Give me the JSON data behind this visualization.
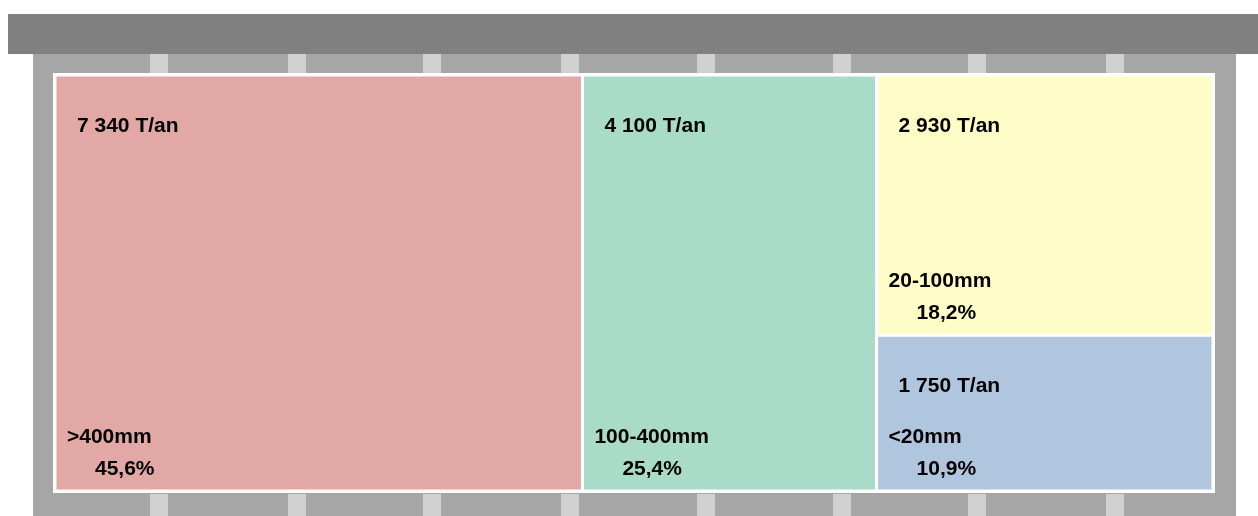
{
  "chart_data": {
    "type": "other",
    "categories": [
      ">400mm",
      "100-400mm",
      "20-100mm",
      "<20mm"
    ],
    "series": [
      {
        "colors": [
          "#e2a8a5",
          "#a9dcc8",
          "#fefdc8",
          "#b0c6de"
        ],
        "values": [
          7340,
          4100,
          2930,
          1750
        ],
        "value_labels": [
          "7 340 T/an",
          "4 100 T/an",
          "2 930 T/an",
          "1 750 T/an"
        ]
      },
      {
        "values": [
          45.6,
          25.4,
          18.2,
          10.9
        ],
        "value_labels": [
          "45,6%",
          "25,4%",
          "18,2%",
          "10,9%"
        ]
      }
    ]
  }
}
